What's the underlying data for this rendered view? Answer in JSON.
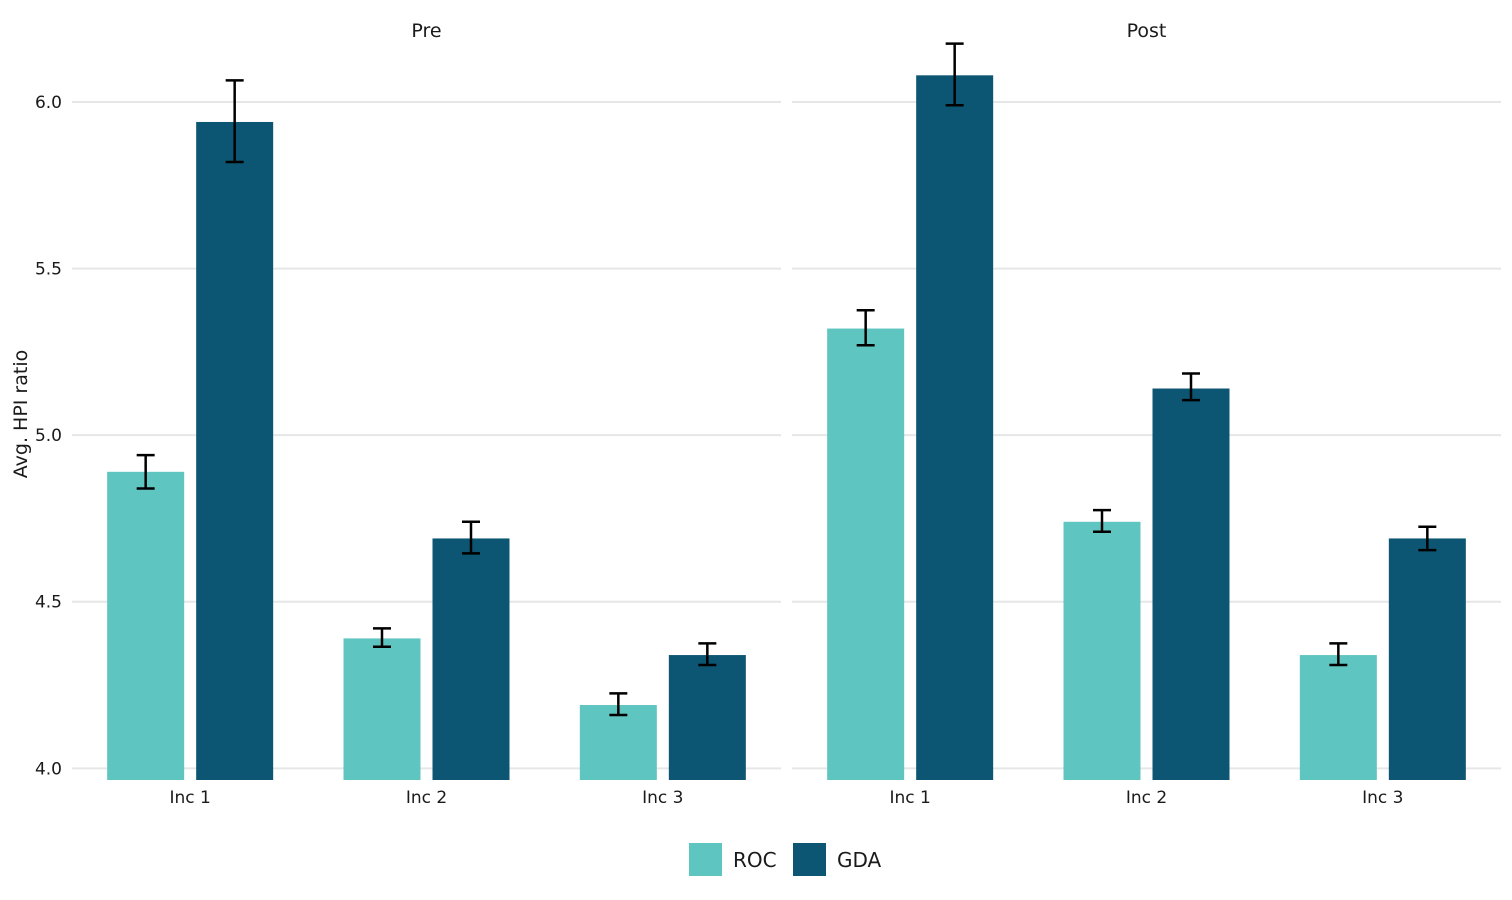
{
  "chart_data": {
    "type": "bar",
    "ylabel": "Avg. HPI ratio",
    "ylim": [
      3.965,
      6.15
    ],
    "yticks": [
      "4.0",
      "4.5",
      "5.0",
      "5.5",
      "6.0"
    ],
    "grid": true,
    "legend_position": "bottom",
    "categories": [
      "Inc 1",
      "Inc 2",
      "Inc 3"
    ],
    "series_names": [
      "ROC",
      "GDA"
    ],
    "series_colors": [
      "#5fc5c1",
      "#0d5673"
    ],
    "panels": [
      {
        "title": "Pre",
        "series": [
          {
            "name": "ROC",
            "values": [
              4.89,
              4.39,
              4.19
            ],
            "errors": [
              [
                4.84,
                4.94
              ],
              [
                4.365,
                4.42
              ],
              [
                4.16,
                4.225
              ]
            ]
          },
          {
            "name": "GDA",
            "values": [
              5.94,
              4.69,
              4.34
            ],
            "errors": [
              [
                5.82,
                6.065
              ],
              [
                4.645,
                4.74
              ],
              [
                4.31,
                4.375
              ]
            ]
          }
        ]
      },
      {
        "title": "Post",
        "series": [
          {
            "name": "ROC",
            "values": [
              5.32,
              4.74,
              4.34
            ],
            "errors": [
              [
                5.27,
                5.375
              ],
              [
                4.71,
                4.775
              ],
              [
                4.31,
                4.375
              ]
            ]
          },
          {
            "name": "GDA",
            "values": [
              6.08,
              5.14,
              4.69
            ],
            "errors": [
              [
                5.99,
                6.175
              ],
              [
                5.105,
                5.185
              ],
              [
                4.655,
                4.725
              ]
            ]
          }
        ]
      }
    ]
  }
}
